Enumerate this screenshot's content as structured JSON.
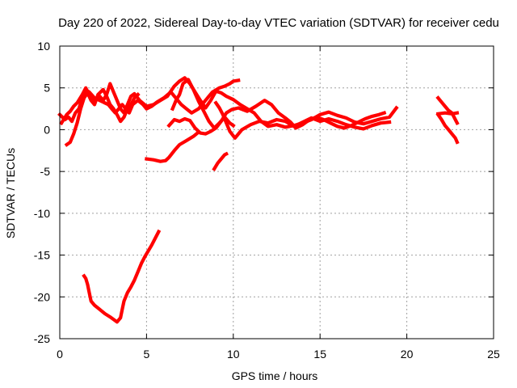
{
  "chart_data": {
    "type": "scatter",
    "title": "Day 220 of 2022, Sidereal Day-to-day VTEC variation (SDTVAR) for receiver cedu",
    "xlabel": "GPS time / hours",
    "ylabel": "SDTVAR / TECUs",
    "xlim": [
      0,
      25
    ],
    "ylim": [
      -25,
      10
    ],
    "xticks": [
      0,
      5,
      10,
      15,
      20,
      25
    ],
    "yticks": [
      10,
      5,
      0,
      -5,
      -10,
      -15,
      -20,
      -25
    ],
    "grid": true,
    "series_color": "#ff0000",
    "series": [
      {
        "name": "track-1",
        "points": [
          [
            0.0,
            1.8
          ],
          [
            0.3,
            1.2
          ],
          [
            0.5,
            1.5
          ],
          [
            0.7,
            1.0
          ],
          [
            0.9,
            2.0
          ],
          [
            1.1,
            2.5
          ],
          [
            1.3,
            3.8
          ],
          [
            1.5,
            4.8
          ],
          [
            1.7,
            4.5
          ],
          [
            2.0,
            3.8
          ],
          [
            2.3,
            3.5
          ],
          [
            2.6,
            3.2
          ],
          [
            2.8,
            3.0
          ],
          [
            3.0,
            2.5
          ],
          [
            3.2,
            2.0
          ],
          [
            3.4,
            2.5
          ],
          [
            3.6,
            3.0
          ],
          [
            3.8,
            2.5
          ],
          [
            4.0,
            2.0
          ],
          [
            4.2,
            3.0
          ],
          [
            4.5,
            3.5
          ],
          [
            4.8,
            3.0
          ],
          [
            5.0,
            2.5
          ],
          [
            5.3,
            2.8
          ],
          [
            5.6,
            3.3
          ],
          [
            6.0,
            3.8
          ],
          [
            6.4,
            4.5
          ],
          [
            6.8,
            3.5
          ],
          [
            7.0,
            3.0
          ],
          [
            7.3,
            2.5
          ],
          [
            7.6,
            2.0
          ],
          [
            8.0,
            2.5
          ],
          [
            8.4,
            3.5
          ],
          [
            8.8,
            4.5
          ],
          [
            9.2,
            5.0
          ],
          [
            9.5,
            5.2
          ],
          [
            9.8,
            5.5
          ],
          [
            10.0,
            5.8
          ],
          [
            10.3,
            5.9
          ]
        ]
      },
      {
        "name": "track-2",
        "points": [
          [
            0.1,
            0.8
          ],
          [
            0.4,
            1.8
          ],
          [
            0.6,
            2.2
          ],
          [
            0.8,
            2.8
          ],
          [
            1.0,
            3.2
          ],
          [
            1.3,
            4.2
          ],
          [
            1.5,
            5.0
          ],
          [
            1.7,
            4.0
          ],
          [
            2.0,
            3.5
          ],
          [
            2.3,
            4.0
          ],
          [
            2.5,
            3.5
          ],
          [
            2.7,
            4.2
          ],
          [
            2.9,
            5.5
          ],
          [
            3.1,
            4.5
          ],
          [
            3.3,
            3.5
          ],
          [
            3.5,
            2.5
          ],
          [
            3.7,
            2.0
          ],
          [
            3.9,
            3.0
          ],
          [
            4.1,
            4.0
          ],
          [
            4.3,
            4.3
          ],
          [
            4.6,
            3.5
          ],
          [
            5.0,
            2.8
          ],
          [
            5.4,
            3.0
          ],
          [
            5.8,
            3.5
          ],
          [
            6.2,
            4.0
          ],
          [
            6.6,
            5.2
          ],
          [
            6.9,
            5.8
          ],
          [
            7.2,
            6.2
          ],
          [
            7.5,
            5.5
          ],
          [
            7.8,
            4.5
          ],
          [
            8.1,
            3.5
          ],
          [
            8.4,
            2.6
          ],
          [
            8.7,
            3.5
          ],
          [
            9.0,
            4.6
          ],
          [
            9.3,
            4.4
          ],
          [
            9.6,
            4.0
          ],
          [
            10.0,
            3.6
          ],
          [
            10.4,
            3.0
          ],
          [
            10.8,
            2.5
          ],
          [
            11.2,
            2.0
          ],
          [
            11.6,
            1.0
          ],
          [
            12.0,
            0.4
          ],
          [
            12.5,
            0.6
          ],
          [
            13.0,
            0.3
          ],
          [
            13.5,
            0.5
          ],
          [
            14.0,
            0.8
          ],
          [
            14.5,
            1.2
          ],
          [
            15.0,
            1.8
          ],
          [
            15.5,
            2.1
          ],
          [
            16.0,
            1.7
          ],
          [
            16.5,
            1.4
          ],
          [
            17.0,
            0.9
          ],
          [
            17.5,
            0.7
          ],
          [
            18.0,
            1.0
          ],
          [
            18.5,
            1.3
          ],
          [
            19.0,
            1.5
          ],
          [
            19.4,
            2.6
          ]
        ]
      },
      {
        "name": "track-3",
        "points": [
          [
            0.4,
            -1.8
          ],
          [
            0.6,
            -1.5
          ],
          [
            0.8,
            -0.5
          ],
          [
            1.0,
            0.8
          ],
          [
            1.2,
            2.5
          ],
          [
            1.4,
            3.8
          ],
          [
            1.6,
            4.4
          ],
          [
            1.8,
            3.5
          ],
          [
            2.0,
            3.0
          ],
          [
            2.2,
            4.2
          ],
          [
            2.5,
            4.8
          ],
          [
            2.7,
            4.0
          ],
          [
            2.9,
            3.0
          ],
          [
            3.1,
            2.5
          ],
          [
            3.3,
            1.8
          ],
          [
            3.5,
            1.0
          ],
          [
            3.7,
            1.5
          ],
          [
            3.9,
            2.5
          ],
          [
            4.1,
            3.0
          ],
          [
            4.3,
            3.8
          ],
          [
            4.5,
            4.2
          ]
        ]
      },
      {
        "name": "track-4",
        "points": [
          [
            6.5,
            2.5
          ],
          [
            6.7,
            3.5
          ],
          [
            6.9,
            4.2
          ],
          [
            7.1,
            5.5
          ],
          [
            7.4,
            6.0
          ],
          [
            7.7,
            4.8
          ],
          [
            8.0,
            3.4
          ],
          [
            8.3,
            2.2
          ],
          [
            8.6,
            1.0
          ],
          [
            8.9,
            0.2
          ],
          [
            9.2,
            0.8
          ],
          [
            9.5,
            1.5
          ],
          [
            9.8,
            0.8
          ],
          [
            10.0,
            0.5
          ]
        ]
      },
      {
        "name": "track-5",
        "points": [
          [
            6.3,
            0.5
          ],
          [
            6.6,
            1.2
          ],
          [
            6.9,
            1.0
          ],
          [
            7.2,
            1.3
          ],
          [
            7.5,
            1.1
          ],
          [
            7.8,
            0.2
          ],
          [
            8.1,
            -0.4
          ],
          [
            8.4,
            -0.5
          ],
          [
            8.7,
            -0.2
          ],
          [
            9.0,
            0.2
          ],
          [
            9.3,
            1.0
          ],
          [
            9.6,
            2.0
          ],
          [
            9.9,
            2.4
          ],
          [
            10.3,
            2.6
          ],
          [
            10.8,
            2.2
          ],
          [
            11.3,
            2.8
          ],
          [
            11.8,
            3.5
          ],
          [
            12.2,
            3.0
          ],
          [
            12.6,
            2.0
          ],
          [
            13.0,
            1.4
          ],
          [
            13.3,
            0.9
          ],
          [
            13.6,
            0.2
          ],
          [
            14.0,
            0.6
          ],
          [
            14.4,
            1.2
          ],
          [
            14.8,
            1.5
          ],
          [
            15.2,
            1.2
          ],
          [
            15.6,
            0.8
          ],
          [
            16.0,
            0.4
          ],
          [
            16.4,
            0.2
          ],
          [
            16.8,
            0.5
          ],
          [
            17.2,
            0.9
          ],
          [
            17.6,
            1.3
          ],
          [
            18.0,
            1.6
          ],
          [
            18.4,
            1.8
          ],
          [
            18.7,
            2.0
          ]
        ]
      },
      {
        "name": "track-6",
        "points": [
          [
            5.0,
            -3.5
          ],
          [
            5.4,
            -3.6
          ],
          [
            5.8,
            -3.8
          ],
          [
            6.1,
            -3.7
          ],
          [
            6.3,
            -3.3
          ],
          [
            6.6,
            -2.5
          ],
          [
            6.9,
            -1.8
          ],
          [
            7.3,
            -1.3
          ],
          [
            7.7,
            -0.8
          ],
          [
            8.0,
            -0.3
          ]
        ]
      },
      {
        "name": "track-7",
        "points": [
          [
            9.0,
            3.2
          ],
          [
            9.2,
            2.6
          ],
          [
            9.4,
            1.8
          ],
          [
            9.6,
            0.8
          ],
          [
            9.8,
            -0.2
          ],
          [
            10.1,
            -1.0
          ],
          [
            10.5,
            0.0
          ],
          [
            11.0,
            0.6
          ],
          [
            11.5,
            1.0
          ],
          [
            12.0,
            0.8
          ],
          [
            12.5,
            1.2
          ],
          [
            13.0,
            1.0
          ],
          [
            13.5,
            0.4
          ],
          [
            14.0,
            0.9
          ],
          [
            14.5,
            1.4
          ],
          [
            15.0,
            1.0
          ],
          [
            15.5,
            1.3
          ],
          [
            16.0,
            1.0
          ],
          [
            16.5,
            0.6
          ],
          [
            17.0,
            0.3
          ],
          [
            17.5,
            0.1
          ],
          [
            18.0,
            0.5
          ],
          [
            18.5,
            0.8
          ],
          [
            19.0,
            0.9
          ]
        ]
      },
      {
        "name": "track-8",
        "points": [
          [
            8.9,
            -4.7
          ],
          [
            9.1,
            -4.0
          ],
          [
            9.3,
            -3.5
          ],
          [
            9.5,
            -3.0
          ],
          [
            9.6,
            -2.9
          ]
        ]
      },
      {
        "name": "track-9",
        "points": [
          [
            1.4,
            -17.5
          ],
          [
            1.5,
            -17.8
          ],
          [
            1.6,
            -18.5
          ],
          [
            1.7,
            -19.5
          ],
          [
            1.8,
            -20.5
          ],
          [
            2.0,
            -21.0
          ],
          [
            2.3,
            -21.5
          ],
          [
            2.6,
            -22.0
          ],
          [
            2.9,
            -22.4
          ],
          [
            3.1,
            -22.7
          ],
          [
            3.3,
            -23.0
          ],
          [
            3.5,
            -22.5
          ],
          [
            3.6,
            -21.5
          ],
          [
            3.7,
            -20.5
          ],
          [
            3.9,
            -19.5
          ],
          [
            4.1,
            -18.8
          ],
          [
            4.3,
            -18.0
          ],
          [
            4.5,
            -17.0
          ],
          [
            4.7,
            -16.0
          ],
          [
            4.9,
            -15.2
          ],
          [
            5.1,
            -14.5
          ],
          [
            5.3,
            -13.8
          ],
          [
            5.5,
            -13.0
          ],
          [
            5.7,
            -12.2
          ]
        ]
      },
      {
        "name": "track-10",
        "points": [
          [
            21.8,
            3.8
          ],
          [
            22.0,
            3.3
          ],
          [
            22.2,
            2.8
          ],
          [
            22.4,
            2.3
          ],
          [
            22.6,
            2.0
          ],
          [
            22.8,
            1.2
          ],
          [
            22.9,
            0.8
          ]
        ]
      },
      {
        "name": "track-11",
        "points": [
          [
            21.8,
            1.8
          ],
          [
            22.0,
            1.2
          ],
          [
            22.2,
            0.5
          ],
          [
            22.4,
            0.0
          ],
          [
            22.6,
            -0.5
          ],
          [
            22.8,
            -1.0
          ],
          [
            22.9,
            -1.5
          ]
        ]
      },
      {
        "name": "track-12",
        "points": [
          [
            21.8,
            1.9
          ],
          [
            22.2,
            2.0
          ],
          [
            22.6,
            1.9
          ],
          [
            22.9,
            2.0
          ]
        ]
      }
    ]
  }
}
